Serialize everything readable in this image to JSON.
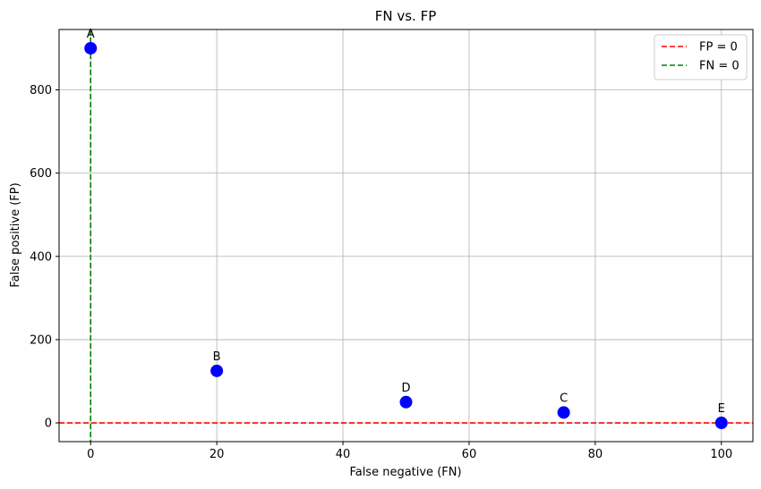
{
  "chart_data": {
    "type": "scatter",
    "title": "FN vs. FP",
    "xlabel": "False negative (FN)",
    "ylabel": "False positive (FP)",
    "xlim": [
      -5,
      105
    ],
    "ylim": [
      -45,
      945
    ],
    "xticks": [
      0,
      20,
      40,
      60,
      80,
      100
    ],
    "yticks": [
      0,
      200,
      400,
      600,
      800
    ],
    "grid": true,
    "legend_position": "top-right",
    "points": [
      {
        "label": "A",
        "x": 0,
        "y": 900
      },
      {
        "label": "B",
        "x": 20,
        "y": 125
      },
      {
        "label": "C",
        "x": 75,
        "y": 25
      },
      {
        "label": "D",
        "x": 50,
        "y": 50
      },
      {
        "label": "E",
        "x": 100,
        "y": 0
      }
    ],
    "point_color": "#0000ff",
    "reference_lines": [
      {
        "name": "FP = 0",
        "orientation": "horizontal",
        "value": 0,
        "color": "#ff0000",
        "style": "dashed"
      },
      {
        "name": "FN = 0",
        "orientation": "vertical",
        "value": 0,
        "color": "#008000",
        "style": "dashed"
      }
    ]
  }
}
